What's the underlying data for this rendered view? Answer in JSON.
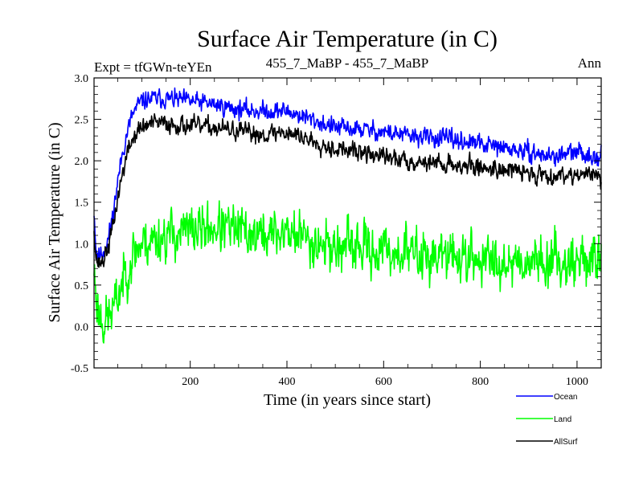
{
  "chart_data": {
    "type": "line",
    "title": "Surface Air Temperature (in C)",
    "subtitle_left": "Expt = tfGWn-teYEn",
    "subtitle_center": "455_7_MaBP - 455_7_MaBP",
    "subtitle_right": "Ann",
    "xlabel": "Time (in years since start)",
    "ylabel": "Surface Air Temperature (in C)",
    "xlim": [
      1,
      1050
    ],
    "ylim": [
      -0.5,
      3.0
    ],
    "x_ticks": [
      200,
      400,
      600,
      800,
      1000
    ],
    "x_tick_labels": [
      "200",
      "400",
      "600",
      "800",
      "1000"
    ],
    "y_ticks": [
      -0.5,
      0.0,
      0.5,
      1.0,
      1.5,
      2.0,
      2.5,
      3.0
    ],
    "y_tick_labels": [
      "-0.5",
      "0.0",
      "0.5",
      "1.0",
      "1.5",
      "2.0",
      "2.5",
      "3.0"
    ],
    "reference_line": 0.0,
    "legend_position": "bottom-right",
    "series": [
      {
        "name": "Ocean",
        "color": "#0000ff",
        "noise": 0.09,
        "seed": 11,
        "x": [
          1,
          5,
          10,
          20,
          30,
          40,
          50,
          60,
          70,
          80,
          90,
          100,
          120,
          150,
          200,
          250,
          300,
          350,
          400,
          450,
          500,
          550,
          600,
          650,
          700,
          750,
          800,
          850,
          900,
          950,
          1000,
          1050
        ],
        "values": [
          1.4,
          0.95,
          0.85,
          0.9,
          1.05,
          1.35,
          1.75,
          2.1,
          2.35,
          2.55,
          2.65,
          2.72,
          2.75,
          2.75,
          2.72,
          2.68,
          2.62,
          2.6,
          2.6,
          2.5,
          2.4,
          2.38,
          2.35,
          2.3,
          2.28,
          2.25,
          2.2,
          2.15,
          2.1,
          2.05,
          2.1,
          2.05
        ]
      },
      {
        "name": "Land",
        "color": "#00ff00",
        "noise": 0.24,
        "seed": 23,
        "x": [
          1,
          5,
          10,
          20,
          30,
          40,
          50,
          60,
          70,
          80,
          90,
          100,
          120,
          150,
          200,
          250,
          300,
          350,
          400,
          450,
          500,
          550,
          600,
          650,
          700,
          750,
          800,
          850,
          900,
          950,
          1000,
          1050
        ],
        "values": [
          0.7,
          0.4,
          0.2,
          0.05,
          0.1,
          0.2,
          0.35,
          0.55,
          0.7,
          0.85,
          0.95,
          1.0,
          1.05,
          1.1,
          1.15,
          1.2,
          1.15,
          1.1,
          1.15,
          1.05,
          0.95,
          0.95,
          0.9,
          0.9,
          0.85,
          0.85,
          0.8,
          0.8,
          0.8,
          0.8,
          0.8,
          0.8
        ]
      },
      {
        "name": "AllSurf",
        "color": "#000000",
        "noise": 0.09,
        "seed": 37,
        "x": [
          1,
          5,
          10,
          20,
          30,
          40,
          50,
          60,
          70,
          80,
          90,
          100,
          120,
          150,
          200,
          250,
          300,
          350,
          400,
          450,
          500,
          550,
          600,
          650,
          700,
          750,
          800,
          850,
          900,
          950,
          1000,
          1050
        ],
        "values": [
          1.2,
          0.85,
          0.75,
          0.8,
          0.95,
          1.2,
          1.55,
          1.85,
          2.1,
          2.25,
          2.35,
          2.4,
          2.45,
          2.45,
          2.42,
          2.4,
          2.35,
          2.32,
          2.35,
          2.25,
          2.15,
          2.1,
          2.05,
          2.0,
          1.98,
          1.95,
          1.92,
          1.9,
          1.85,
          1.82,
          1.85,
          1.8
        ]
      }
    ]
  }
}
